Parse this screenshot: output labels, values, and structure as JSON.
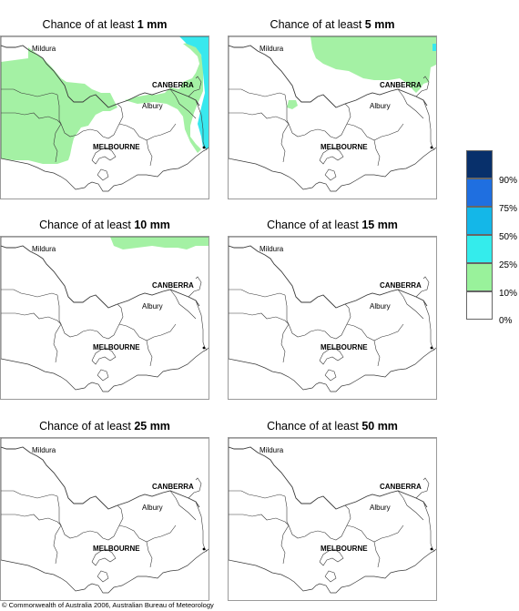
{
  "panels": [
    {
      "title_prefix": "Chance of at least ",
      "amount": "1 mm"
    },
    {
      "title_prefix": "Chance of at least ",
      "amount": "5 mm"
    },
    {
      "title_prefix": "Chance of at least ",
      "amount": "10 mm"
    },
    {
      "title_prefix": "Chance of at least ",
      "amount": "15 mm"
    },
    {
      "title_prefix": "Chance of at least ",
      "amount": "25 mm"
    },
    {
      "title_prefix": "Chance of at least ",
      "amount": "50 mm"
    }
  ],
  "places": {
    "mildura": "Mildura",
    "canberra": "CANBERRA",
    "albury": "Albury",
    "melbourne": "MELBOURNE"
  },
  "legend": {
    "labels": [
      "90%",
      "75%",
      "50%",
      "25%",
      "10%",
      "0%"
    ],
    "colors": [
      "#08306b",
      "#1f6fe0",
      "#14b7e8",
      "#34ecec",
      "#99f29b",
      "#ffffff"
    ]
  },
  "map_colors": {
    "land_fill": "#ffffff",
    "boundary": "#3a3a3a",
    "green": "#a4f1a4",
    "cyan": "#38e8ee"
  },
  "copyright": "© Commonwealth of Australia 2006, Australian Bureau of Meteorology"
}
